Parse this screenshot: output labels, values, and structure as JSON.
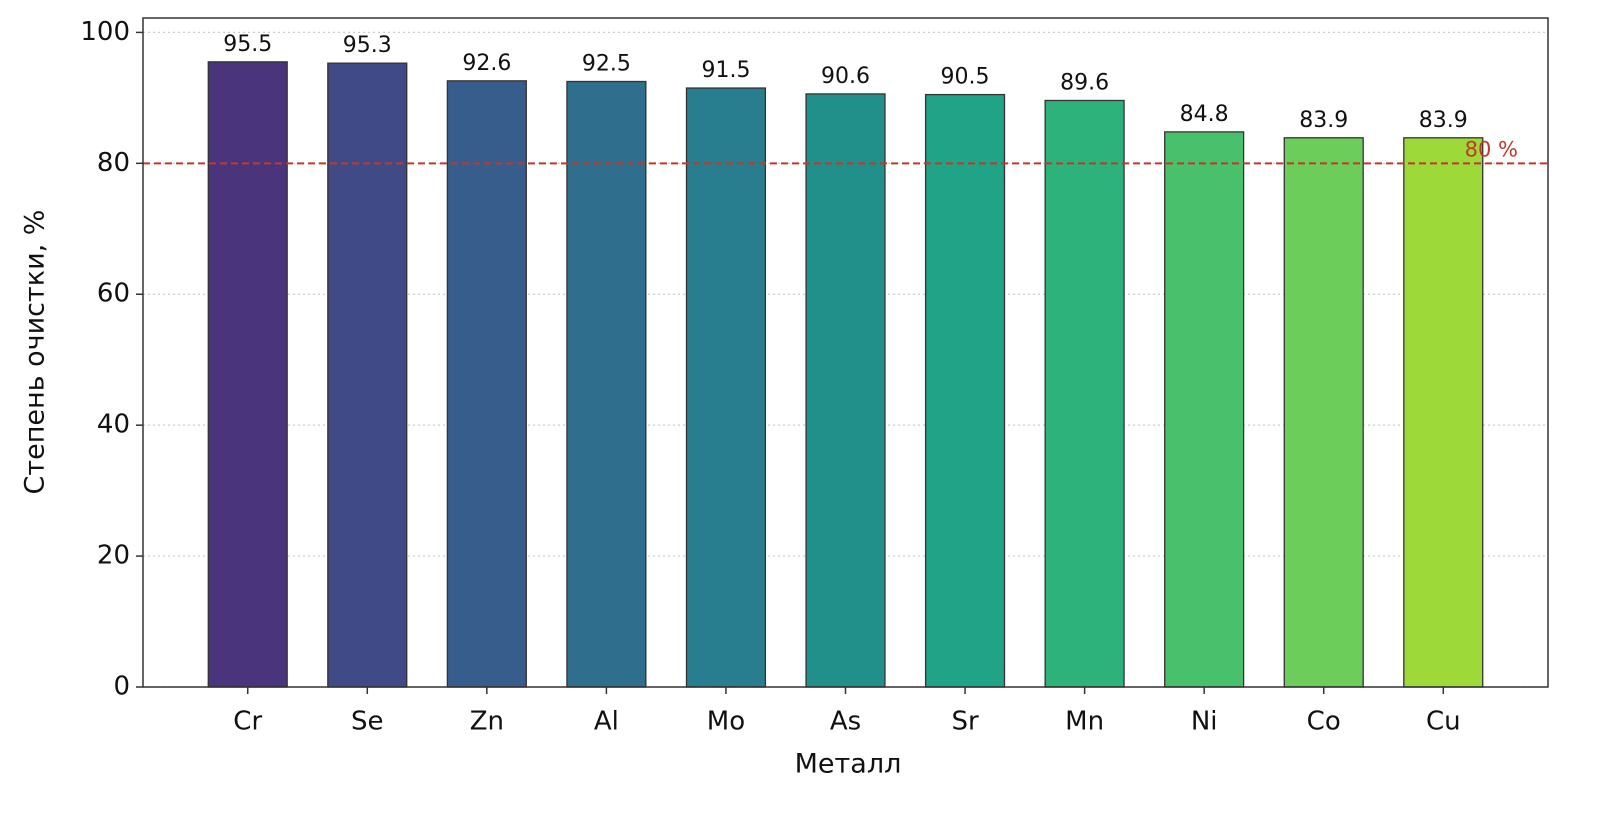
{
  "chart_data": {
    "type": "bar",
    "x_label": "Металл",
    "y_label": "Степень очистки, %",
    "categories": [
      "Cr",
      "Se",
      "Zn",
      "Al",
      "Mo",
      "As",
      "Sr",
      "Mn",
      "Ni",
      "Co",
      "Cu"
    ],
    "values": [
      95.5,
      95.3,
      92.6,
      92.5,
      91.5,
      90.6,
      90.5,
      89.6,
      84.8,
      83.9,
      83.9
    ],
    "colors": [
      "#4a347c",
      "#3f4a87",
      "#365d8c",
      "#2f6e8c",
      "#287e8e",
      "#22908a",
      "#20a386",
      "#2db27c",
      "#48c06c",
      "#6ccd5a",
      "#9ed93a"
    ],
    "ylim": [
      0,
      102.2
    ],
    "yticks": [
      0,
      20,
      40,
      60,
      80,
      100
    ],
    "grid": true,
    "threshold": {
      "value": 80,
      "label": "80 %",
      "color": "#c0392b"
    }
  }
}
